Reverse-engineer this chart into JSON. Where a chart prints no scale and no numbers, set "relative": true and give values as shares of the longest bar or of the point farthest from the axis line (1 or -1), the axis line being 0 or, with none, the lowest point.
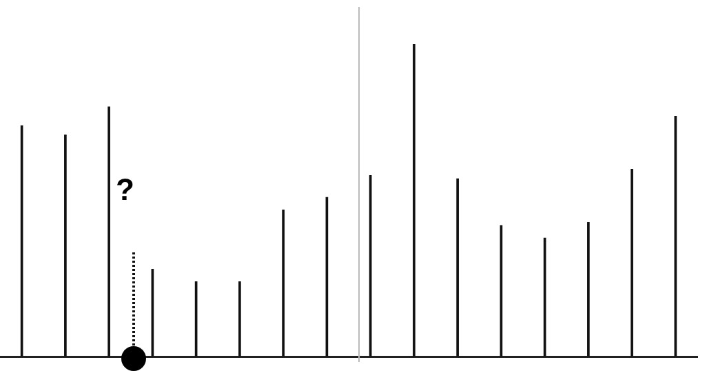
{
  "chart_data": {
    "type": "bar",
    "relative": true,
    "categories": [
      null,
      null,
      null,
      null,
      null,
      null,
      null,
      null,
      null,
      null,
      null,
      null,
      null,
      null,
      null,
      null
    ],
    "series": [
      {
        "color": "#111111",
        "values": [
          0.74,
          0.71,
          0.8,
          0.28,
          0.24,
          0.24,
          0.47,
          0.51,
          0.58,
          1,
          0.57,
          0.42,
          0.38,
          0.43,
          0.6,
          0.77
        ]
      }
    ],
    "grid": false,
    "legend": false,
    "annotations": [
      "?"
    ]
  }
}
